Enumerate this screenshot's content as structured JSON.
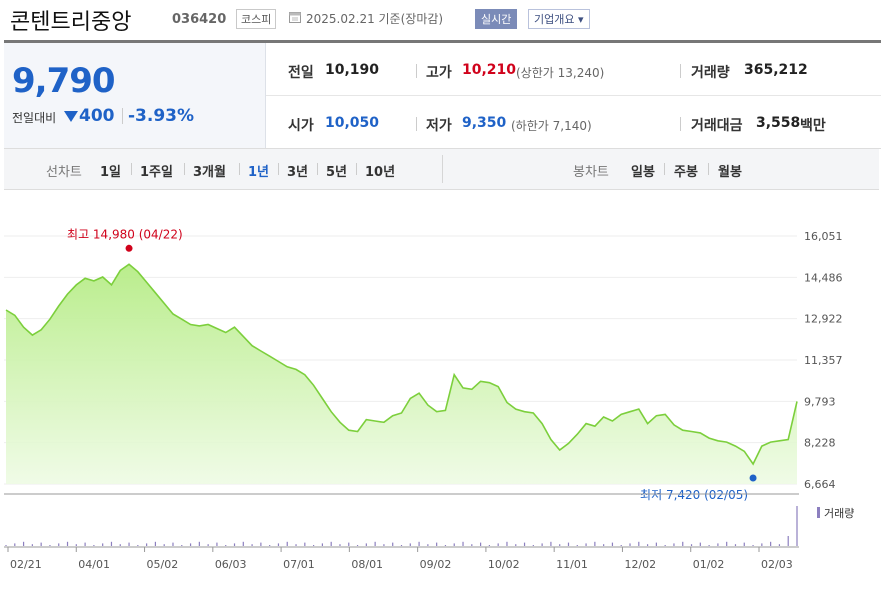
{
  "header": {
    "title": "콘텐트리중앙",
    "code": "036420",
    "market": "코스피",
    "date": "2025.02.21 기준(장마감)",
    "realtime_label": "실시간",
    "overview_label": "기업개요 ▾"
  },
  "summary": {
    "price": "9,790",
    "change_label": "전일대비",
    "change_amount": "400",
    "change_rate": "-3.93%",
    "prev_close_label": "전일",
    "prev_close": "10,190",
    "high_label": "고가",
    "high": "10,210",
    "upper_limit_label": "(상한가 13,240)",
    "volume_label": "거래량",
    "volume": "365,212",
    "open_label": "시가",
    "open": "10,050",
    "low_label": "저가",
    "low": "9,350",
    "lower_limit_label": "(하한가 7,140)",
    "trade_value_label": "거래대금",
    "trade_value": "3,558",
    "trade_value_unit": "백만"
  },
  "period_bar": {
    "line_chart_label": "선차트",
    "line_periods": [
      "1일",
      "1주일",
      "3개월",
      "1년",
      "3년",
      "5년",
      "10년"
    ],
    "active_period": "1년",
    "candle_chart_label": "봉차트",
    "candle_periods": [
      "일봉",
      "주봉",
      "월봉"
    ]
  },
  "colors": {
    "accent_blue": "#1f62c7",
    "up_red": "#d0021b",
    "area_fill": "#c8f0a0",
    "line": "#7ccf3c",
    "volume_bar": "#8c7fbf"
  },
  "chart_data": {
    "type": "area",
    "ylim": [
      6664,
      16051
    ],
    "y_ticks": [
      "16,051",
      "14,486",
      "12,922",
      "11,357",
      "9,793",
      "8,228",
      "6,664"
    ],
    "x_ticks": [
      "02/21",
      "04/01",
      "05/02",
      "06/03",
      "07/01",
      "08/01",
      "09/02",
      "10/02",
      "11/01",
      "12/02",
      "01/02",
      "02/03"
    ],
    "max_annotation": "최고 14,980 (04/22)",
    "min_annotation": "최저 7,420 (02/05)",
    "max_value": 14980,
    "min_value": 7420,
    "volume_legend": "거래량",
    "series": [
      {
        "values": [
          13250,
          13050,
          12600,
          12300,
          12500,
          12900,
          13400,
          13850,
          14200,
          14450,
          14350,
          14500,
          14200,
          14750,
          14980,
          14700,
          14300,
          13900,
          13500,
          13100,
          12900,
          12700,
          12650,
          12700,
          12550,
          12400,
          12600,
          12250,
          11900,
          11700,
          11500,
          11300,
          11100,
          11000,
          10800,
          10400,
          9900,
          9400,
          9000,
          8700,
          8650,
          9100,
          9050,
          9000,
          9250,
          9350,
          9900,
          10100,
          9650,
          9400,
          9450,
          10800,
          10300,
          10250,
          10550,
          10500,
          10350,
          9750,
          9500,
          9400,
          9350,
          8950,
          8350,
          7950,
          8200,
          8550,
          8950,
          8850,
          9200,
          9050,
          9300,
          9400,
          9500,
          8950,
          9250,
          9300,
          8900,
          8700,
          8650,
          8600,
          8400,
          8300,
          8250,
          8100,
          7900,
          7420,
          8100,
          8250,
          8300,
          8350,
          9790
        ]
      }
    ]
  }
}
